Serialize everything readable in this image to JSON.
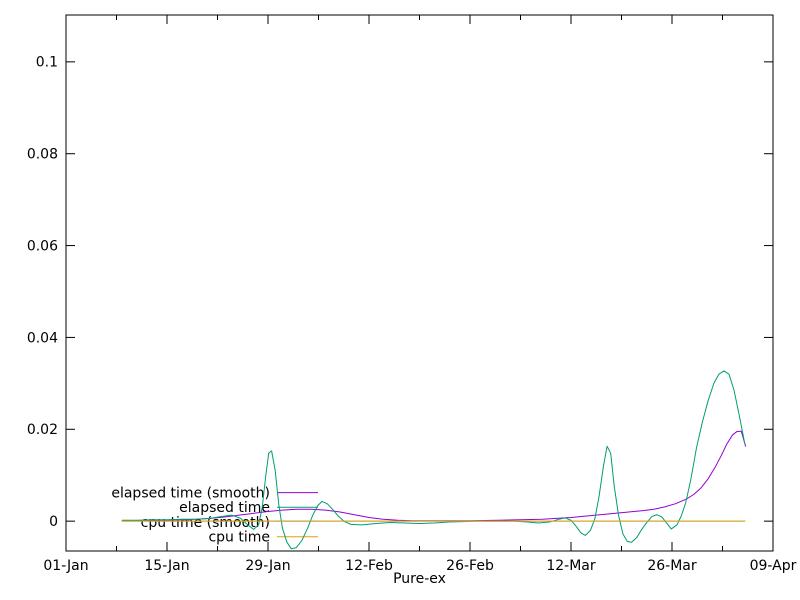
{
  "window": {
    "background_color": "#ffffff",
    "foreground_color": "#000000"
  },
  "chart_data": {
    "type": "line",
    "title": "",
    "xlabel": "Pure-ex",
    "ylabel": "",
    "grid": false,
    "legend_position": "inside-bottom-left",
    "x_axis": {
      "unit": "date-days-since-01-Jan",
      "range_days": [
        0,
        98
      ],
      "major_ticks": [
        {
          "label": "01-Jan",
          "day": 0
        },
        {
          "label": "15-Jan",
          "day": 14
        },
        {
          "label": "29-Jan",
          "day": 28
        },
        {
          "label": "12-Feb",
          "day": 42
        },
        {
          "label": "26-Feb",
          "day": 56
        },
        {
          "label": "12-Mar",
          "day": 70
        },
        {
          "label": "26-Mar",
          "day": 84
        },
        {
          "label": "09-Apr",
          "day": 98
        }
      ],
      "minor_tick_days": [
        7,
        21,
        35,
        49,
        63,
        77,
        91
      ]
    },
    "y_axis": {
      "range": [
        -0.0065,
        0.1102
      ],
      "major_ticks": [
        {
          "label": "0",
          "value": 0
        },
        {
          "label": "0.02",
          "value": 0.02
        },
        {
          "label": "0.04",
          "value": 0.04
        },
        {
          "label": "0.06",
          "value": 0.06
        },
        {
          "label": "0.08",
          "value": 0.08
        },
        {
          "label": "0.1",
          "value": 0.1
        }
      ]
    },
    "legend": {
      "entries": [
        "elapsed time (smooth)",
        "elapsed time",
        "cpu time (smooth)",
        "cpu time"
      ]
    },
    "series": [
      {
        "name": "elapsed time (smooth)",
        "color": "#9400D3",
        "points": [
          [
            7.8,
            0.0001
          ],
          [
            12,
            0.0002
          ],
          [
            16,
            0.0003
          ],
          [
            18,
            0.0004
          ],
          [
            20,
            0.0006
          ],
          [
            22,
            0.0009
          ],
          [
            24,
            0.0013
          ],
          [
            26,
            0.0017
          ],
          [
            28,
            0.0021
          ],
          [
            30,
            0.0024
          ],
          [
            32,
            0.0026
          ],
          [
            34,
            0.0026
          ],
          [
            36,
            0.0024
          ],
          [
            38,
            0.002
          ],
          [
            40,
            0.0014
          ],
          [
            42,
            0.0008
          ],
          [
            44,
            0.0004
          ],
          [
            46,
            0.0002
          ],
          [
            48,
            0.0001
          ],
          [
            52,
            0.0001
          ],
          [
            56,
            0.0001
          ],
          [
            60,
            0.0002
          ],
          [
            63,
            0.0003
          ],
          [
            66,
            0.0004
          ],
          [
            68,
            0.0006
          ],
          [
            70,
            0.0008
          ],
          [
            72,
            0.0011
          ],
          [
            74,
            0.0014
          ],
          [
            76,
            0.0017
          ],
          [
            78,
            0.002
          ],
          [
            80,
            0.0023
          ],
          [
            81.5,
            0.0026
          ],
          [
            83,
            0.0031
          ],
          [
            84.5,
            0.0038
          ],
          [
            86,
            0.0048
          ],
          [
            87,
            0.0058
          ],
          [
            88,
            0.0072
          ],
          [
            89,
            0.0092
          ],
          [
            90,
            0.0118
          ],
          [
            90.8,
            0.0142
          ],
          [
            91.6,
            0.0168
          ],
          [
            92.4,
            0.0188
          ],
          [
            93,
            0.0195
          ],
          [
            93.6,
            0.0196
          ],
          [
            94.2,
            0.0163
          ]
        ]
      },
      {
        "name": "elapsed time",
        "color": "#009E73",
        "points": [
          [
            7.8,
            0.0002
          ],
          [
            10,
            0.0002
          ],
          [
            12,
            0.0003
          ],
          [
            14,
            0.0003
          ],
          [
            16,
            0.0004
          ],
          [
            18,
            0.0004
          ],
          [
            20,
            0.0006
          ],
          [
            21.5,
            0.001
          ],
          [
            23,
            0.0013
          ],
          [
            24.2,
            0.0006
          ],
          [
            25.2,
            -0.0008
          ],
          [
            26,
            -0.0018
          ],
          [
            26.7,
            -0.0008
          ],
          [
            27.2,
            0.003
          ],
          [
            27.7,
            0.01
          ],
          [
            28.1,
            0.0148
          ],
          [
            28.5,
            0.0153
          ],
          [
            29,
            0.011
          ],
          [
            29.5,
            0.0035
          ],
          [
            30,
            -0.0015
          ],
          [
            30.6,
            -0.0045
          ],
          [
            31.2,
            -0.006
          ],
          [
            31.9,
            -0.0058
          ],
          [
            32.7,
            -0.0042
          ],
          [
            33.5,
            -0.0015
          ],
          [
            34.2,
            0.0013
          ],
          [
            34.9,
            0.0034
          ],
          [
            35.5,
            0.0043
          ],
          [
            36.2,
            0.0038
          ],
          [
            37,
            0.0025
          ],
          [
            37.8,
            0.001
          ],
          [
            38.6,
            -0.0001
          ],
          [
            39.5,
            -0.0007
          ],
          [
            41,
            -0.0008
          ],
          [
            43,
            -0.0005
          ],
          [
            45,
            -0.0003
          ],
          [
            47,
            -0.0004
          ],
          [
            49,
            -0.0005
          ],
          [
            51,
            -0.0004
          ],
          [
            53,
            -0.0002
          ],
          [
            55,
            -0.0001
          ],
          [
            57,
            0
          ],
          [
            60,
            0
          ],
          [
            62,
            0
          ],
          [
            64,
            -0.0002
          ],
          [
            65.5,
            -0.0004
          ],
          [
            67,
            -0.0002
          ],
          [
            68.3,
            0.0004
          ],
          [
            69.2,
            0.0007
          ],
          [
            70,
            0.0002
          ],
          [
            70.7,
            -0.0011
          ],
          [
            71.4,
            -0.0026
          ],
          [
            72,
            -0.0031
          ],
          [
            72.7,
            -0.002
          ],
          [
            73.3,
            0.0005
          ],
          [
            73.9,
            0.0055
          ],
          [
            74.5,
            0.012
          ],
          [
            75,
            0.0163
          ],
          [
            75.5,
            0.0148
          ],
          [
            76,
            0.0075
          ],
          [
            76.6,
            0.0012
          ],
          [
            77.2,
            -0.0028
          ],
          [
            77.8,
            -0.0044
          ],
          [
            78.4,
            -0.0046
          ],
          [
            79.1,
            -0.0036
          ],
          [
            79.8,
            -0.0018
          ],
          [
            80.5,
            -0.0003
          ],
          [
            81.2,
            0.001
          ],
          [
            81.9,
            0.0014
          ],
          [
            82.6,
            0.0009
          ],
          [
            83.3,
            -0.0005
          ],
          [
            83.9,
            -0.0017
          ],
          [
            84.7,
            -0.0008
          ],
          [
            85.3,
            0.0012
          ],
          [
            85.9,
            0.004
          ],
          [
            86.6,
            0.009
          ],
          [
            87.4,
            0.016
          ],
          [
            88.2,
            0.0215
          ],
          [
            89,
            0.0262
          ],
          [
            89.8,
            0.03
          ],
          [
            90.5,
            0.032
          ],
          [
            91.2,
            0.0327
          ],
          [
            91.9,
            0.032
          ],
          [
            92.6,
            0.0285
          ],
          [
            93.3,
            0.0232
          ],
          [
            94.1,
            0.0168
          ]
        ]
      },
      {
        "name": "cpu time (smooth)",
        "color": "#56B4E9",
        "points": [
          [
            7.8,
            0
          ],
          [
            94.1,
            0
          ]
        ]
      },
      {
        "name": "cpu time",
        "color": "#E69F00",
        "points": [
          [
            7.8,
            0
          ],
          [
            94.1,
            0
          ]
        ]
      }
    ]
  }
}
